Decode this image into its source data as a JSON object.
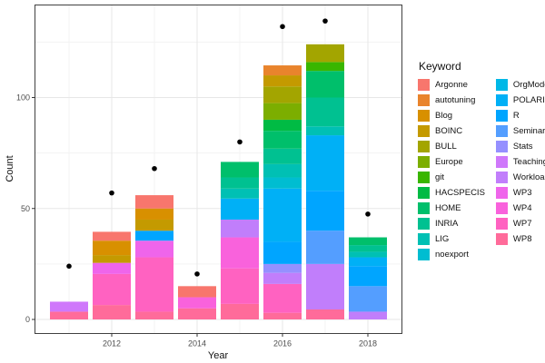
{
  "chart_data": {
    "type": "bar",
    "stacked": true,
    "overlay": "scatter-points",
    "xlabel": "Year",
    "ylabel": "Count",
    "legend_title": "Keyword",
    "x_ticks": [
      2012,
      2014,
      2016,
      2018
    ],
    "x_minor_ticks": [
      2011,
      2013,
      2015,
      2017
    ],
    "y_ticks": [
      0,
      50,
      100
    ],
    "y_minor_ticks": [
      25,
      75,
      125
    ],
    "ylim": [
      -6,
      142
    ],
    "grid": true,
    "legend_position": "right",
    "keywords": [
      {
        "label": "Argonne",
        "color": "#F8766D"
      },
      {
        "label": "autotuning",
        "color": "#E9842C"
      },
      {
        "label": "Blog",
        "color": "#D89000"
      },
      {
        "label": "BOINC",
        "color": "#C49A00"
      },
      {
        "label": "BULL",
        "color": "#A3A500"
      },
      {
        "label": "Europe",
        "color": "#7CAE00"
      },
      {
        "label": "git",
        "color": "#39B600"
      },
      {
        "label": "HACSPECIS",
        "color": "#00BB44"
      },
      {
        "label": "HOME",
        "color": "#00BF6B"
      },
      {
        "label": "INRIA",
        "color": "#00C191"
      },
      {
        "label": "LIG",
        "color": "#00C0B4"
      },
      {
        "label": "noexport",
        "color": "#00BDD1"
      },
      {
        "label": "OrgMode",
        "color": "#00B8E7"
      },
      {
        "label": "POLARIS",
        "color": "#00B0F6"
      },
      {
        "label": "R",
        "color": "#00A5FF"
      },
      {
        "label": "Seminar",
        "color": "#549EFF"
      },
      {
        "label": "Stats",
        "color": "#9590FF"
      },
      {
        "label": "Teaching",
        "color": "#CF78FB"
      },
      {
        "label": "Workload",
        "color": "#C17EFB"
      },
      {
        "label": "WP3",
        "color": "#EF65EB"
      },
      {
        "label": "WP4",
        "color": "#F962DC"
      },
      {
        "label": "WP7",
        "color": "#FF62C1"
      },
      {
        "label": "WP8",
        "color": "#FF6B9A"
      }
    ],
    "bars": [
      {
        "year": 2011,
        "total": 8,
        "segments": [
          {
            "keyword": "WP8",
            "value": 3.5
          },
          {
            "keyword": "Teaching",
            "value": 4.5
          }
        ]
      },
      {
        "year": 2012,
        "total": 39.5,
        "segments": [
          {
            "keyword": "WP8",
            "value": 6.5
          },
          {
            "keyword": "WP7",
            "value": 14
          },
          {
            "keyword": "WP3",
            "value": 5
          },
          {
            "keyword": "BOINC",
            "value": 3.5
          },
          {
            "keyword": "Blog",
            "value": 6.5
          },
          {
            "keyword": "Argonne",
            "value": 4
          }
        ]
      },
      {
        "year": 2013,
        "total": 56,
        "segments": [
          {
            "keyword": "WP8",
            "value": 3.5
          },
          {
            "keyword": "WP7",
            "value": 24.5
          },
          {
            "keyword": "WP3",
            "value": 7.5
          },
          {
            "keyword": "R",
            "value": 4.5
          },
          {
            "keyword": "BOINC",
            "value": 5
          },
          {
            "keyword": "Blog",
            "value": 5
          },
          {
            "keyword": "Argonne",
            "value": 6
          }
        ]
      },
      {
        "year": 2014,
        "total": 15,
        "segments": [
          {
            "keyword": "WP8",
            "value": 5
          },
          {
            "keyword": "WP4",
            "value": 5
          },
          {
            "keyword": "Argonne",
            "value": 5
          }
        ]
      },
      {
        "year": 2015,
        "total": 71,
        "segments": [
          {
            "keyword": "WP8",
            "value": 7
          },
          {
            "keyword": "WP7",
            "value": 16
          },
          {
            "keyword": "WP4",
            "value": 14
          },
          {
            "keyword": "Workload",
            "value": 8
          },
          {
            "keyword": "POLARIS",
            "value": 9.5
          },
          {
            "keyword": "LIG",
            "value": 4.5
          },
          {
            "keyword": "INRIA",
            "value": 5
          },
          {
            "keyword": "HOME",
            "value": 7
          }
        ]
      },
      {
        "year": 2016,
        "total": 114.5,
        "segments": [
          {
            "keyword": "WP8",
            "value": 3
          },
          {
            "keyword": "WP7",
            "value": 13
          },
          {
            "keyword": "Workload",
            "value": 5
          },
          {
            "keyword": "Stats",
            "value": 4
          },
          {
            "keyword": "R",
            "value": 10
          },
          {
            "keyword": "POLARIS",
            "value": 24
          },
          {
            "keyword": "noexport",
            "value": 5
          },
          {
            "keyword": "LIG",
            "value": 6
          },
          {
            "keyword": "INRIA",
            "value": 7
          },
          {
            "keyword": "HOME",
            "value": 8
          },
          {
            "keyword": "HACSPECIS",
            "value": 5
          },
          {
            "keyword": "Europe",
            "value": 7.5
          },
          {
            "keyword": "BULL",
            "value": 7.5
          },
          {
            "keyword": "BOINC",
            "value": 5
          },
          {
            "keyword": "autotuning",
            "value": 4.5
          }
        ]
      },
      {
        "year": 2017,
        "total": 124,
        "segments": [
          {
            "keyword": "WP8",
            "value": 4.5
          },
          {
            "keyword": "Workload",
            "value": 20.5
          },
          {
            "keyword": "Seminar",
            "value": 15
          },
          {
            "keyword": "R",
            "value": 18
          },
          {
            "keyword": "POLARIS",
            "value": 25
          },
          {
            "keyword": "LIG",
            "value": 4
          },
          {
            "keyword": "INRIA",
            "value": 13
          },
          {
            "keyword": "HOME",
            "value": 12
          },
          {
            "keyword": "git",
            "value": 4
          },
          {
            "keyword": "BULL",
            "value": 8
          }
        ]
      },
      {
        "year": 2018,
        "total": 37,
        "segments": [
          {
            "keyword": "Workload",
            "value": 3.5
          },
          {
            "keyword": "Seminar",
            "value": 11.5
          },
          {
            "keyword": "R",
            "value": 9
          },
          {
            "keyword": "POLARIS",
            "value": 4
          },
          {
            "keyword": "LIG",
            "value": 2.5
          },
          {
            "keyword": "INRIA",
            "value": 3
          },
          {
            "keyword": "HOME",
            "value": 3.5
          }
        ]
      }
    ],
    "points": [
      {
        "year": 2011,
        "value": 24
      },
      {
        "year": 2012,
        "value": 57
      },
      {
        "year": 2013,
        "value": 68
      },
      {
        "year": 2014,
        "value": 20.5
      },
      {
        "year": 2015,
        "value": 80
      },
      {
        "year": 2016,
        "value": 132
      },
      {
        "year": 2017,
        "value": 134.5
      },
      {
        "year": 2018,
        "value": 47.5
      }
    ],
    "colors_meta": {
      "panel_border": "#404040",
      "grid_major": "#E7E7E7",
      "grid_minor": "#F3F3F3",
      "tick_text": "#4D4D4D",
      "point": "#000000"
    }
  }
}
